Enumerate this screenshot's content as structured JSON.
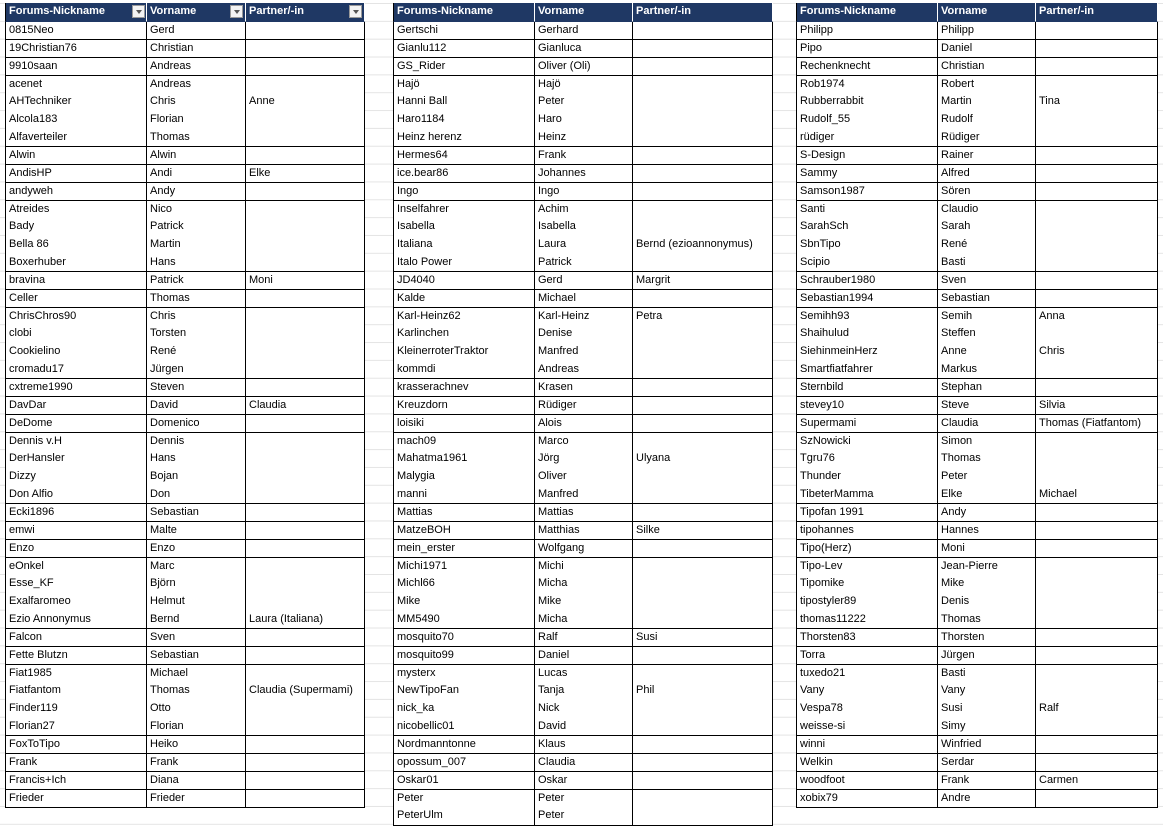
{
  "tables": [
    {
      "headers": [
        "Forums-Nickname",
        "Vorname",
        "Partner/-in"
      ],
      "rows": [
        [
          "0815Neo",
          "Gerd"
        ],
        [
          "19Christian76",
          "Christian"
        ],
        [
          "9910saan",
          "Andreas"
        ],
        [
          "acenet",
          "Andreas"
        ],
        [
          "AHTechniker",
          "Chris",
          "Anne"
        ],
        [
          "Alcola183",
          "Florian"
        ],
        [
          "Alfaverteiler",
          "Thomas"
        ],
        [
          "Alwin",
          "Alwin"
        ],
        [
          "AndisHP",
          "Andi",
          "Elke"
        ],
        [
          "andyweh",
          "Andy"
        ],
        [
          "Atreides",
          "Nico"
        ],
        [
          "Bady",
          "Patrick"
        ],
        [
          "Bella 86",
          "Martin"
        ],
        [
          "Boxerhuber",
          "Hans"
        ],
        [
          "bravina",
          "Patrick",
          "Moni"
        ],
        [
          "Celler",
          "Thomas"
        ],
        [
          "ChrisChros90",
          "Chris"
        ],
        [
          "clobi",
          "Torsten"
        ],
        [
          "Cookielino",
          "René"
        ],
        [
          "cromadu17",
          "Jürgen"
        ],
        [
          "cxtreme1990",
          "Steven"
        ],
        [
          "DavDar",
          "David",
          "Claudia"
        ],
        [
          "DeDome",
          "Domenico"
        ],
        [
          "Dennis v.H",
          "Dennis"
        ],
        [
          "DerHansler",
          "Hans"
        ],
        [
          "Dizzy",
          "Bojan"
        ],
        [
          "Don Alfio",
          "Don"
        ],
        [
          "Ecki1896",
          "Sebastian"
        ],
        [
          "emwi",
          "Malte"
        ],
        [
          "Enzo",
          "Enzo"
        ],
        [
          "eOnkel",
          "Marc"
        ],
        [
          "Esse_KF",
          "Björn"
        ],
        [
          "Exalfaromeo",
          "Helmut"
        ],
        [
          "Ezio Annonymus",
          "Bernd",
          "Laura (Italiana)"
        ],
        [
          "Falcon",
          "Sven"
        ],
        [
          "Fette Blutzn",
          "Sebastian"
        ],
        [
          "Fiat1985",
          "Michael"
        ],
        [
          "Fiatfantom",
          "Thomas",
          "Claudia (Supermami)"
        ],
        [
          "Finder119",
          "Otto"
        ],
        [
          "Florian27",
          "Florian"
        ],
        [
          "FoxToTipo",
          "Heiko"
        ],
        [
          "Frank",
          "Frank"
        ],
        [
          "Francis+Ich",
          "Diana"
        ],
        [
          "Frieder",
          "Frieder"
        ]
      ]
    },
    {
      "headers": [
        "Forums-Nickname",
        "Vorname",
        "Partner/-in"
      ],
      "rows": [
        [
          "Gertschi",
          "Gerhard"
        ],
        [
          "Gianlu112",
          "Gianluca"
        ],
        [
          "GS_Rider",
          "Oliver (Oli)"
        ],
        [
          "Hajö",
          "Hajö"
        ],
        [
          "Hanni Ball",
          "Peter"
        ],
        [
          "Haro1184",
          "Haro"
        ],
        [
          "Heinz herenz",
          "Heinz"
        ],
        [
          "Hermes64",
          "Frank"
        ],
        [
          "ice.bear86",
          "Johannes"
        ],
        [
          "Ingo",
          "Ingo"
        ],
        [
          "Inselfahrer",
          "Achim"
        ],
        [
          "Isabella",
          "Isabella"
        ],
        [
          "Italiana",
          "Laura",
          "Bernd (ezioannonymus)"
        ],
        [
          "Italo Power",
          "Patrick"
        ],
        [
          "JD4040",
          "Gerd",
          "Margrit"
        ],
        [
          "Kalde",
          "Michael"
        ],
        [
          "Karl-Heinz62",
          "Karl-Heinz",
          "Petra"
        ],
        [
          "Karlinchen",
          "Denise"
        ],
        [
          "KleinerroterTraktor",
          "Manfred"
        ],
        [
          "kommdi",
          "Andreas"
        ],
        [
          "krasserachnev",
          "Krasen"
        ],
        [
          "Kreuzdorn",
          "Rüdiger"
        ],
        [
          "loisiki",
          "Alois"
        ],
        [
          "mach09",
          "Marco"
        ],
        [
          "Mahatma1961",
          "Jörg",
          "Ulyana"
        ],
        [
          "Malygia",
          "Oliver"
        ],
        [
          "manni",
          "Manfred"
        ],
        [
          "Mattias",
          "Mattias"
        ],
        [
          "MatzeBOH",
          "Matthias",
          "Silke"
        ],
        [
          "mein_erster",
          "Wolfgang"
        ],
        [
          "Michi1971",
          "Michi"
        ],
        [
          "Michl66",
          "Micha"
        ],
        [
          "Mike",
          "Mike"
        ],
        [
          "MM5490",
          "Micha"
        ],
        [
          "mosquito70",
          "Ralf",
          "Susi"
        ],
        [
          "mosquito99",
          "Daniel"
        ],
        [
          "mysterx",
          "Lucas"
        ],
        [
          "NewTipoFan",
          "Tanja",
          "Phil"
        ],
        [
          "nick_ka",
          "Nick"
        ],
        [
          "nicobellic01",
          "David"
        ],
        [
          "Nordmanntonne",
          "Klaus"
        ],
        [
          "opossum_007",
          "Claudia"
        ],
        [
          "Oskar01",
          "Oskar"
        ],
        [
          "Peter",
          "Peter"
        ],
        [
          "PeterUlm",
          "Peter"
        ]
      ]
    },
    {
      "headers": [
        "Forums-Nickname",
        "Vorname",
        "Partner/-in"
      ],
      "rows": [
        [
          "Philipp",
          "Philipp"
        ],
        [
          "Pipo",
          "Daniel"
        ],
        [
          "Rechenknecht",
          "Christian"
        ],
        [
          "Rob1974",
          "Robert"
        ],
        [
          "Rubberrabbit",
          "Martin",
          "Tina"
        ],
        [
          "Rudolf_55",
          "Rudolf"
        ],
        [
          "rüdiger",
          "Rüdiger"
        ],
        [
          "S-Design",
          "Rainer"
        ],
        [
          "Sammy",
          "Alfred"
        ],
        [
          "Samson1987",
          "Sören"
        ],
        [
          "Santi",
          "Claudio"
        ],
        [
          "SarahSch",
          "Sarah"
        ],
        [
          "SbnTipo",
          "René"
        ],
        [
          "Scipio",
          "Basti"
        ],
        [
          "Schrauber1980",
          "Sven"
        ],
        [
          "Sebastian1994",
          "Sebastian"
        ],
        [
          "Semihh93",
          "Semih",
          "Anna"
        ],
        [
          "Shaihulud",
          "Steffen"
        ],
        [
          "SiehinmeinHerz",
          "Anne",
          "Chris"
        ],
        [
          "Smartfiatfahrer",
          "Markus"
        ],
        [
          "Sternbild",
          "Stephan"
        ],
        [
          "stevey10",
          "Steve",
          "Silvia"
        ],
        [
          "Supermami",
          "Claudia",
          "Thomas (Fiatfantom)"
        ],
        [
          "SzNowicki",
          "Simon"
        ],
        [
          "Tgru76",
          "Thomas"
        ],
        [
          "Thunder",
          "Peter"
        ],
        [
          "TibeterMamma",
          "Elke",
          "Michael"
        ],
        [
          "Tipofan 1991",
          "Andy"
        ],
        [
          "tipohannes",
          "Hannes"
        ],
        [
          "Tipo(Herz)",
          "Moni"
        ],
        [
          "Tipo-Lev",
          "Jean-Pierre"
        ],
        [
          "Tipomike",
          "Mike"
        ],
        [
          "tipostyler89",
          "Denis"
        ],
        [
          "thomas11222",
          "Thomas"
        ],
        [
          "Thorsten83",
          "Thorsten"
        ],
        [
          "Torra",
          "Jürgen"
        ],
        [
          "tuxedo21",
          "Basti"
        ],
        [
          "Vany",
          "Vany"
        ],
        [
          "Vespa78",
          "Susi",
          "Ralf"
        ],
        [
          "weisse-si",
          "Simy"
        ],
        [
          "winni",
          "Winfried"
        ],
        [
          "Welkin",
          "Serdar"
        ],
        [
          "woodfoot",
          "Frank",
          "Carmen"
        ],
        [
          "xobix79",
          "Andre"
        ]
      ]
    }
  ]
}
